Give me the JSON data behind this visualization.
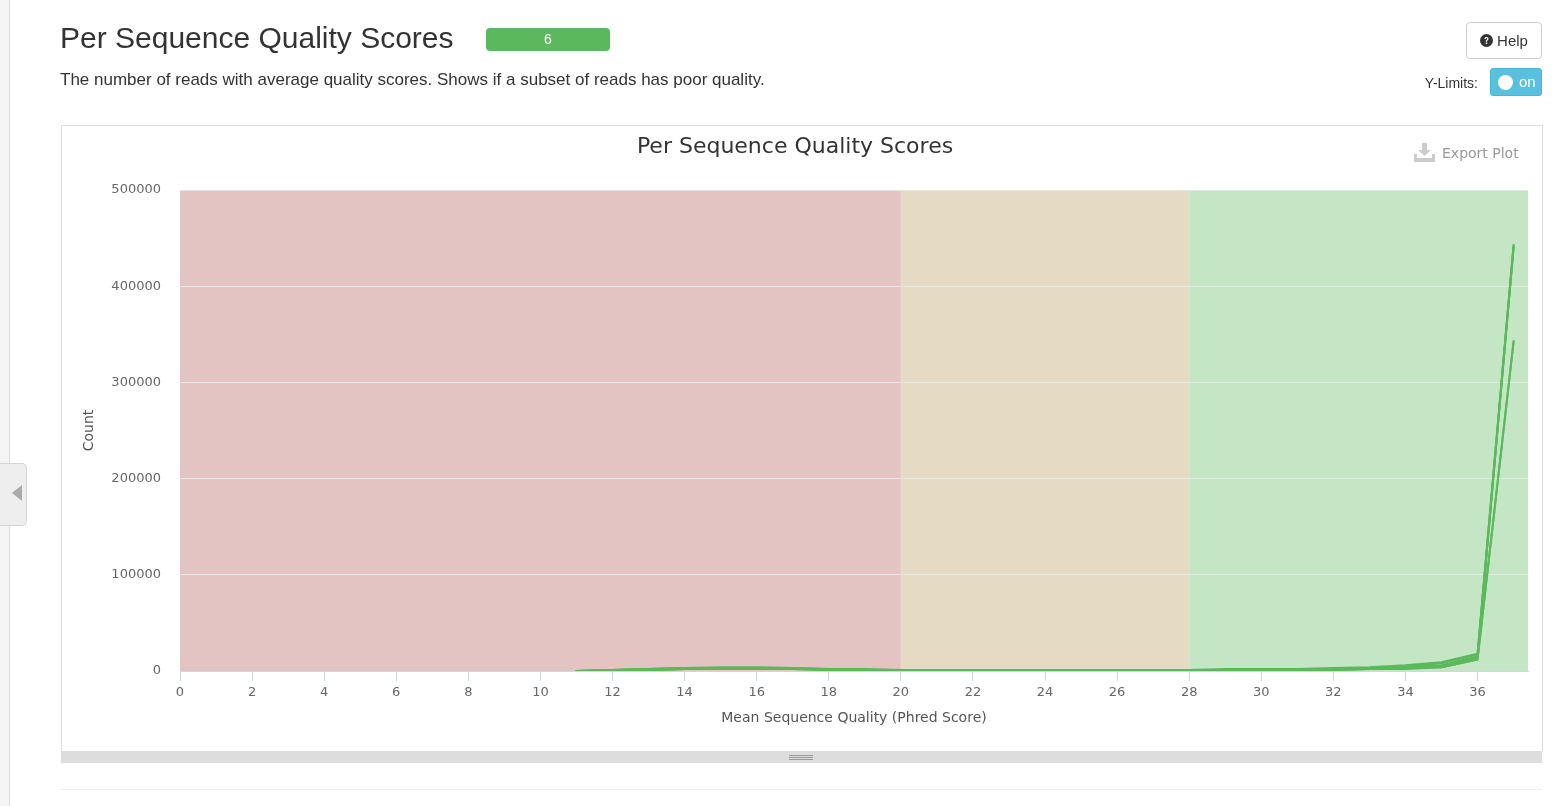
{
  "chart_data": {
    "type": "line",
    "title": "Per Sequence Quality Scores",
    "subtitle": "The number of reads with average quality scores. Shows if a subset of reads has poor quality.",
    "xlabel": "Mean Sequence Quality (Phred Score)",
    "ylabel": "Count",
    "annotations": [
      "Per Sequence Quality Scores",
      "6",
      "Help",
      "Y-Limits:",
      "on",
      "Export Plot"
    ],
    "x": [
      11,
      12,
      13,
      14,
      15,
      16,
      17,
      18,
      19,
      20,
      21,
      22,
      23,
      24,
      25,
      26,
      27,
      28,
      29,
      30,
      31,
      32,
      33,
      34,
      35,
      36,
      37
    ],
    "series": [
      {
        "color": "#5cb85c",
        "values": [
          0,
          1000,
          2000,
          3000,
          3000,
          3000,
          3000,
          2000,
          1000,
          1000,
          1000,
          1000,
          1000,
          1000,
          1000,
          1000,
          1000,
          1000,
          1000,
          2000,
          2000,
          2000,
          3000,
          5000,
          8000,
          17000,
          442000
        ]
      },
      {
        "color": "#5cb85c",
        "values": [
          0,
          1000,
          2000,
          3000,
          3000,
          3000,
          2000,
          2000,
          1000,
          1000,
          1000,
          1000,
          1000,
          1000,
          1000,
          1000,
          1000,
          1000,
          1000,
          1000,
          2000,
          2000,
          3000,
          4000,
          6000,
          15000,
          441000
        ]
      },
      {
        "color": "#5cb85c",
        "values": [
          0,
          1000,
          1000,
          2000,
          3000,
          3000,
          2000,
          2000,
          1000,
          1000,
          1000,
          1000,
          1000,
          1000,
          1000,
          1000,
          1000,
          1000,
          1000,
          1000,
          1000,
          2000,
          2000,
          3000,
          5000,
          14000,
          440000
        ]
      },
      {
        "color": "#5cb85c",
        "values": [
          0,
          0,
          1000,
          2000,
          2000,
          2000,
          2000,
          1000,
          1000,
          1000,
          1000,
          1000,
          1000,
          1000,
          1000,
          1000,
          1000,
          1000,
          1000,
          1000,
          1000,
          1000,
          2000,
          3000,
          4000,
          12000,
          343000
        ]
      },
      {
        "color": "#5cb85c",
        "values": [
          0,
          0,
          1000,
          2000,
          2000,
          2000,
          2000,
          1000,
          1000,
          1000,
          1000,
          1000,
          1000,
          1000,
          1000,
          1000,
          1000,
          1000,
          1000,
          1000,
          1000,
          1000,
          2000,
          2000,
          4000,
          12000,
          342000
        ]
      },
      {
        "color": "#5cb85c",
        "values": [
          0,
          1000,
          2000,
          3000,
          4000,
          4000,
          3000,
          2000,
          2000,
          1000,
          1000,
          1000,
          1000,
          1000,
          1000,
          1000,
          1000,
          1000,
          2000,
          2000,
          2000,
          3000,
          4000,
          6000,
          9000,
          18000,
          443000
        ]
      }
    ],
    "xlim": [
      0,
      37.4
    ],
    "xticks": [
      0,
      2,
      4,
      6,
      8,
      10,
      12,
      14,
      16,
      18,
      20,
      22,
      24,
      26,
      28,
      30,
      32,
      34,
      36
    ],
    "ylim": [
      0,
      500000
    ],
    "yticks": [
      0,
      100000,
      200000,
      300000,
      400000,
      500000
    ],
    "bands": [
      {
        "axis": "x",
        "from": 0,
        "to": 20,
        "color": "#e4c3c3"
      },
      {
        "axis": "x",
        "from": 20,
        "to": 28,
        "color": "#e5dbc4"
      },
      {
        "axis": "x",
        "from": 28,
        "to": 37.4,
        "color": "#c4e6c4"
      }
    ],
    "grid": "y",
    "legend": false,
    "marker": "none"
  }
}
